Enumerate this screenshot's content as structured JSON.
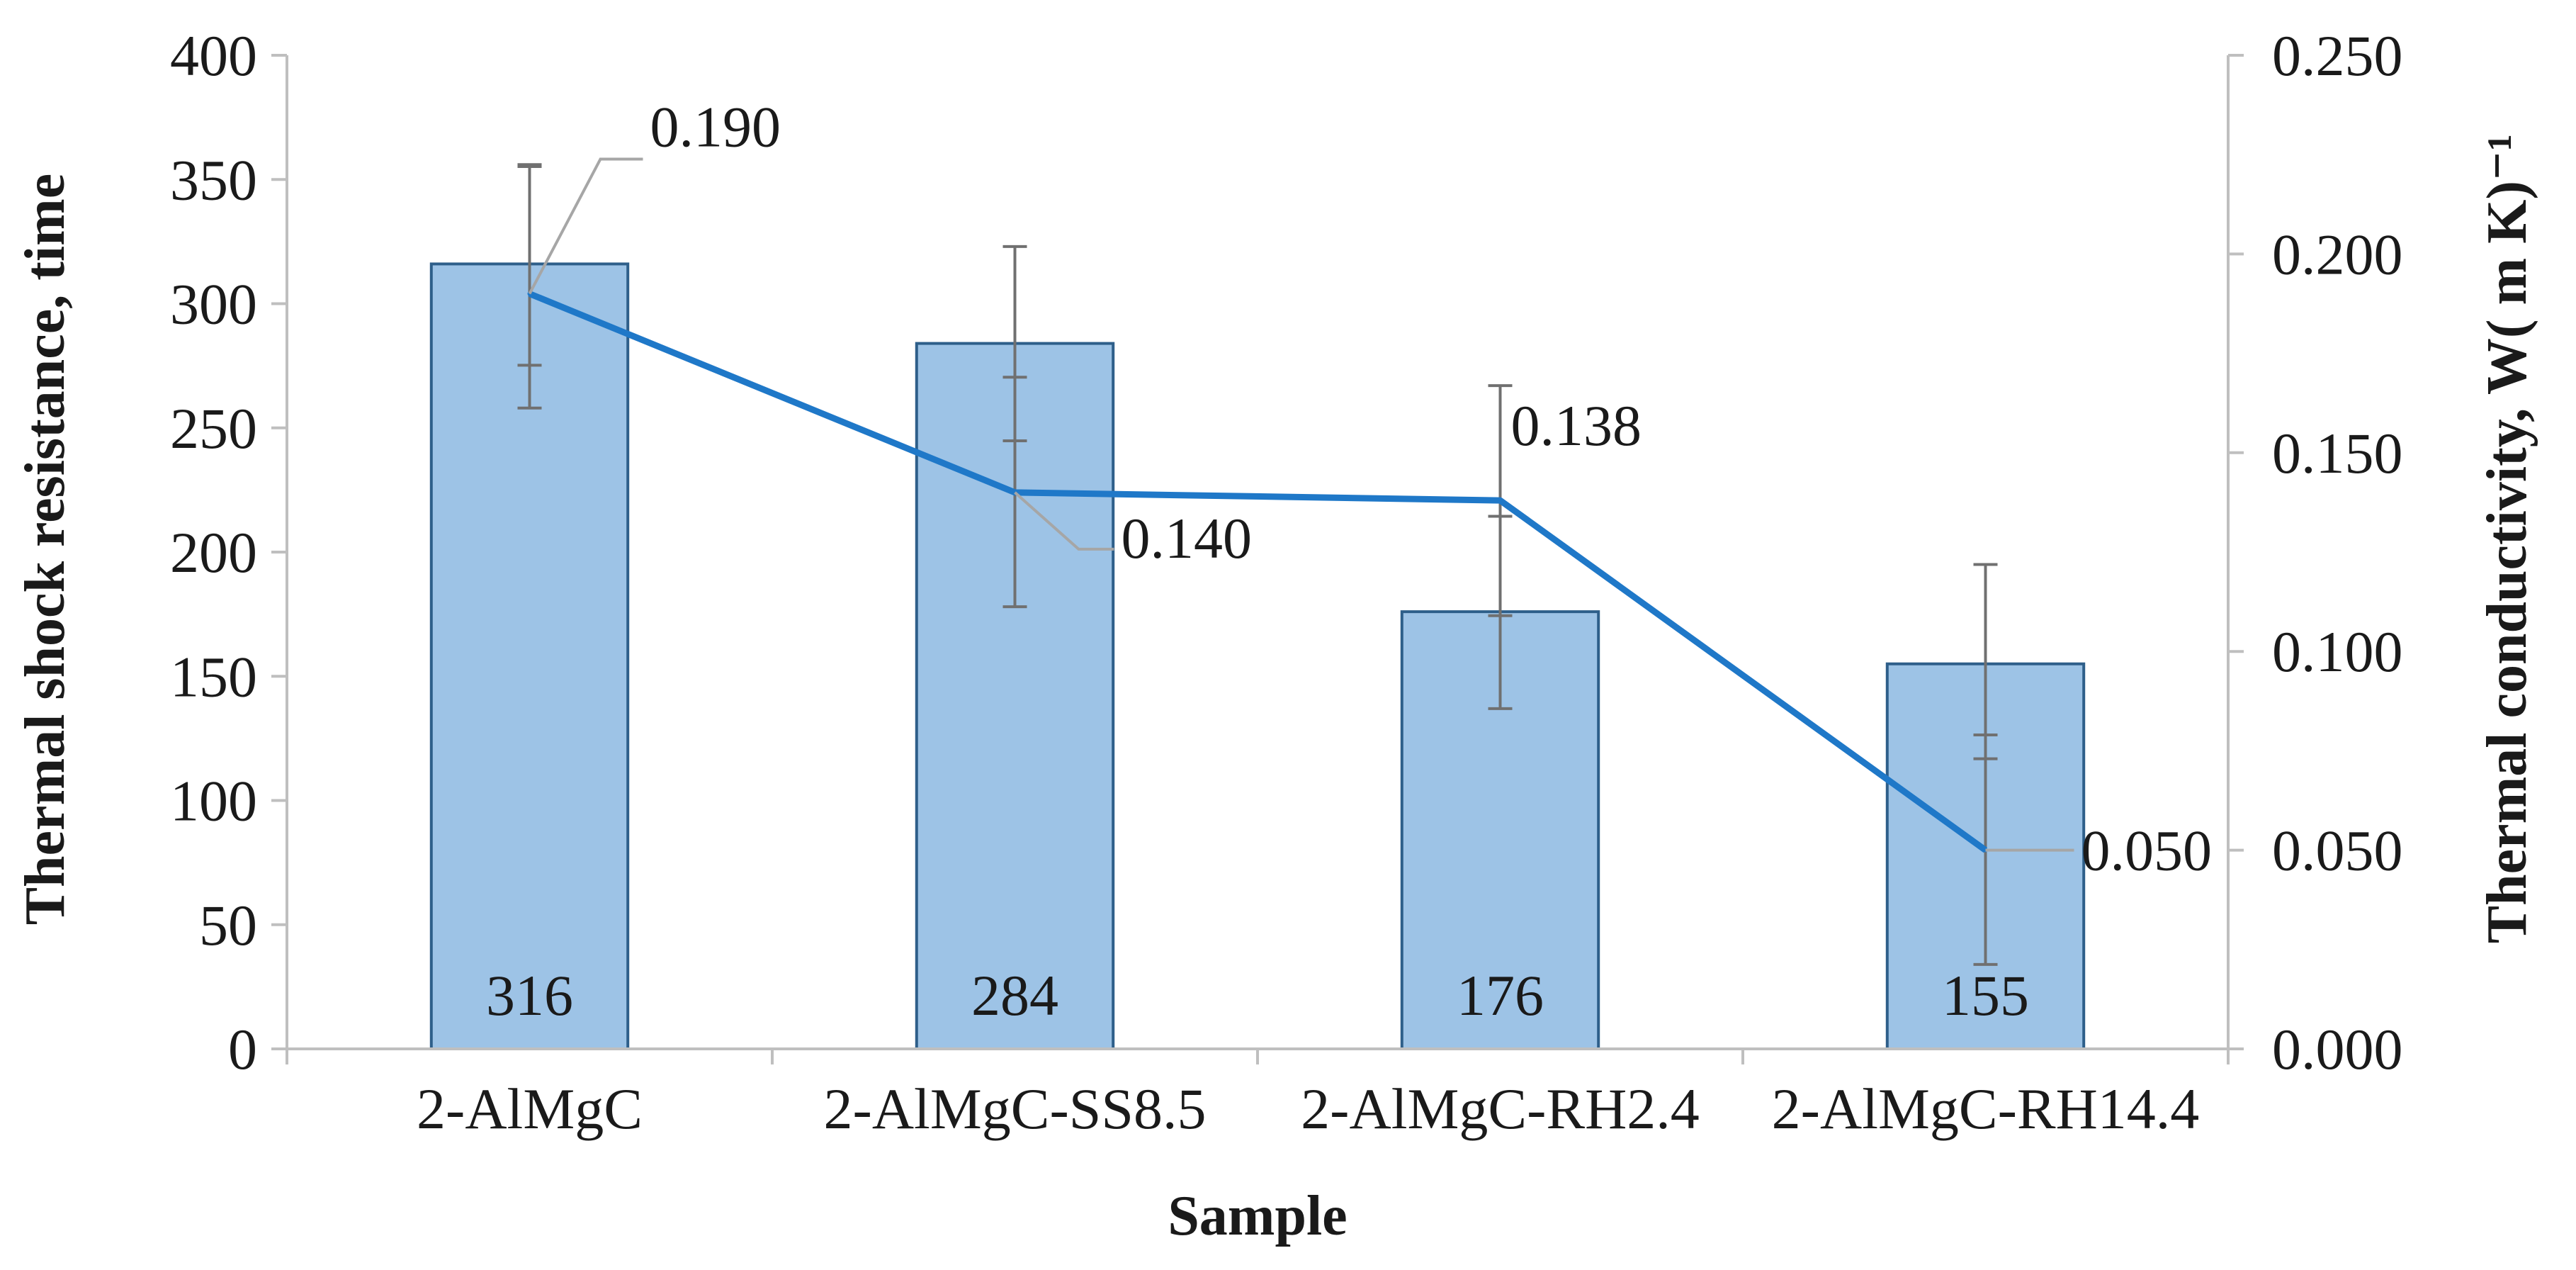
{
  "chart_data": {
    "type": "bar",
    "categories": [
      "2-AlMgC",
      "2-AlMgC-SS8.5",
      "2-AlMgC-RH2.4",
      "2-AlMgC-RH14.4"
    ],
    "series": [
      {
        "name": "Thermal shock resistance",
        "type": "bar",
        "axis": "left",
        "values": [
          316,
          284,
          176,
          155
        ],
        "data_labels": [
          "316",
          "284",
          "176",
          "155"
        ],
        "error_low": [
          258,
          178,
          137,
          34
        ],
        "error_high": [
          356,
          323,
          267,
          195
        ],
        "color": "#9dc3e6",
        "edge_color": "#2e5f8a"
      },
      {
        "name": "Thermal conductivity",
        "type": "line",
        "axis": "right",
        "values": [
          0.19,
          0.14,
          0.138,
          0.05
        ],
        "data_labels": [
          "0.190",
          "0.140",
          "0.138",
          "0.050"
        ],
        "error_low": [
          0.172,
          0.153,
          0.109,
          0.073
        ],
        "error_high": [
          0.222,
          0.169,
          0.134,
          0.079
        ],
        "color": "#1f78c8"
      }
    ],
    "xlabel": "Sample",
    "ylabel": "Thermal shock resistance, time",
    "y2label": "Thermal conductivity, W( m K)⁻¹",
    "ylim": [
      0,
      400
    ],
    "y2lim": [
      0,
      0.25
    ],
    "yticks": [
      "0",
      "50",
      "100",
      "150",
      "200",
      "250",
      "300",
      "350",
      "400"
    ],
    "y2ticks": [
      "0.000",
      "0.050",
      "0.100",
      "0.150",
      "0.200",
      "0.250"
    ],
    "grid": false,
    "legend": "none",
    "axis_color": "#bfbfbf",
    "error_bar_color": "#707070",
    "leader_color": "#a6a6a6"
  }
}
